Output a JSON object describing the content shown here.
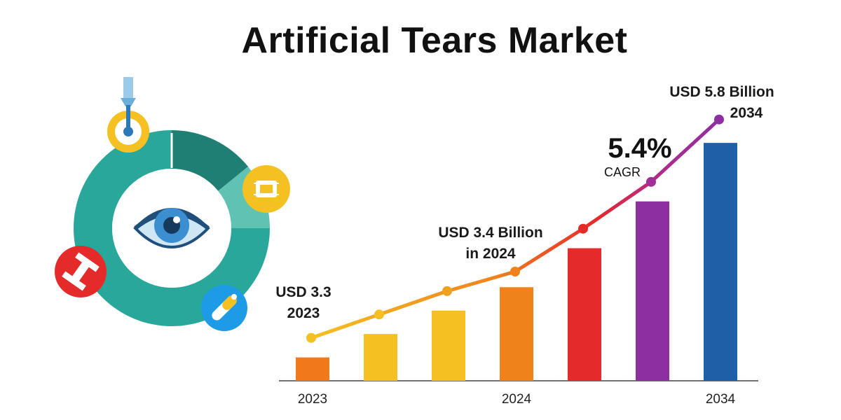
{
  "title": "Artificial Tears Market",
  "annotations": {
    "start": {
      "line1": "USD 3.3",
      "line2": "2023"
    },
    "mid": {
      "line1": "USD 3.4 Billion",
      "line2": "in 2024"
    },
    "end": {
      "line1": "USD 5.8 Billion",
      "line2": "2034"
    },
    "cagr_value": "5.4%",
    "cagr_label": "CAGR"
  },
  "icons": [
    "eye-dropper-icon",
    "chip-icon",
    "medical-device-icon",
    "pill-icon",
    "eye-icon"
  ],
  "colors": {
    "teal": "#2aa79b",
    "dark_teal": "#1f7f74",
    "yellow": "#f5c022",
    "red": "#e52a2a",
    "blue": "#1e9be6",
    "purple": "#8e2fa0",
    "dark_blue": "#1f5fa8"
  },
  "chart_data": {
    "type": "bar",
    "x_tick_labels": [
      "2023",
      "",
      "",
      "2024",
      "",
      "",
      "2034"
    ],
    "values": [
      0.6,
      1.2,
      1.8,
      2.4,
      3.4,
      4.6,
      6.1
    ],
    "bar_colors": [
      "#f07a1a",
      "#f5c022",
      "#f5c022",
      "#f0821c",
      "#e52a2a",
      "#8e2fa0",
      "#1f5fa8"
    ],
    "trend_values": [
      1.1,
      1.7,
      2.3,
      2.8,
      3.9,
      5.1,
      6.7
    ],
    "ylim": [
      0,
      7
    ],
    "grid": false,
    "legend": "none"
  }
}
